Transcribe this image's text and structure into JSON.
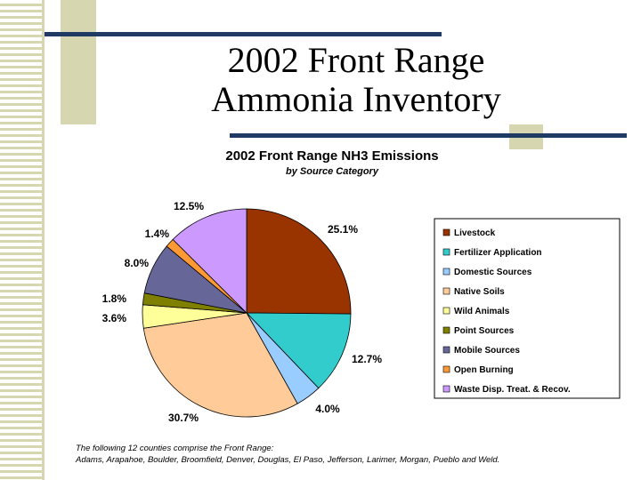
{
  "slide": {
    "title_line1": "2002 Front Range",
    "title_line2": "Ammonia Inventory"
  },
  "chart_data": {
    "type": "pie",
    "title": "2002 Front Range NH3 Emissions",
    "subtitle": "by Source Category",
    "legend_position": "right",
    "slices": [
      {
        "name": "Livestock",
        "value": 25.1,
        "label": "25.1%",
        "color": "#993300"
      },
      {
        "name": "Fertilizer Application",
        "value": 12.7,
        "label": "12.7%",
        "color": "#33cccc"
      },
      {
        "name": "Domestic Sources",
        "value": 4.0,
        "label": "4.0%",
        "color": "#99ccff"
      },
      {
        "name": "Native Soils",
        "value": 30.7,
        "label": "30.7%",
        "color": "#ffcc99"
      },
      {
        "name": "Wild Animals",
        "value": 3.6,
        "label": "3.6%",
        "color": "#ffff99"
      },
      {
        "name": "Point Sources",
        "value": 1.8,
        "label": "1.8%",
        "color": "#808000"
      },
      {
        "name": "Mobile Sources",
        "value": 8.0,
        "label": "8.0%",
        "color": "#666699"
      },
      {
        "name": "Open Burning",
        "value": 1.4,
        "label": "1.4%",
        "color": "#ff9933"
      },
      {
        "name": "Waste Disp. Treat. & Recov.",
        "value": 12.5,
        "label": "12.5%",
        "color": "#cc99ff"
      }
    ]
  },
  "footnote": {
    "line1": "The following 12 counties comprise the Front Range:",
    "line2": "Adams, Arapahoe, Boulder, Broomfield, Denver, Douglas, El Paso, Jefferson, Larimer, Morgan, Pueblo and Weld."
  }
}
